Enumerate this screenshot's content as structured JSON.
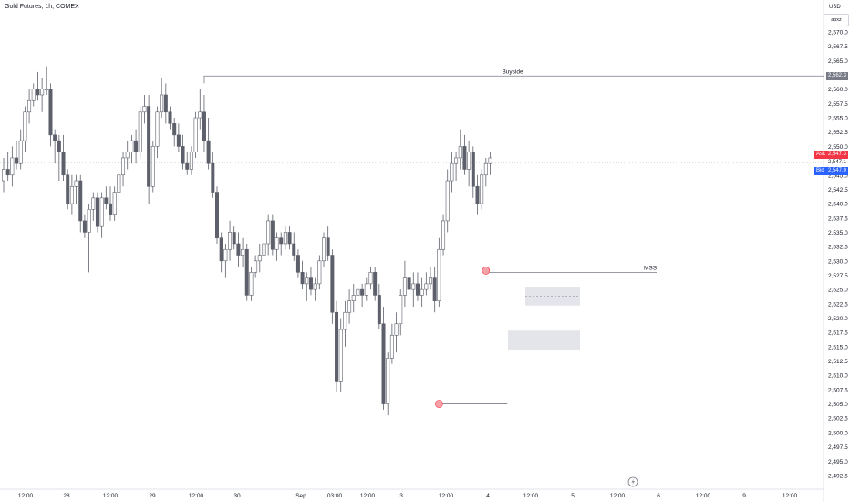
{
  "header": {
    "title": "Gold Futures, 1h, COMEX"
  },
  "price_scale": {
    "currency": "USD",
    "mode": "apxz",
    "ticks": [
      "2,570.0",
      "2,567.5",
      "2,565.0",
      "2,562.5",
      "2,560.0",
      "2,557.5",
      "2,555.0",
      "2,552.5",
      "2,550.0",
      "2,547.5",
      "2,545.0",
      "2,542.5",
      "2,540.0",
      "2,537.5",
      "2,535.0",
      "2,532.5",
      "2,530.0",
      "2,527.5",
      "2,525.0",
      "2,522.5",
      "2,520.0",
      "2,517.5",
      "2,515.0",
      "2,512.5",
      "2,510.0",
      "2,507.5",
      "2,505.0",
      "2,502.5",
      "2,500.0",
      "2,497.5",
      "2,495.0",
      "2,492.5"
    ],
    "tags": {
      "buyside": {
        "value": "2,562.3",
        "color": "#787b86"
      },
      "ask": {
        "label": "Ask",
        "value": "2,547.3",
        "color": "#f23645"
      },
      "last": {
        "value": "2,547.1"
      },
      "bid": {
        "label": "Bid",
        "value": "2,547.0",
        "color": "#2962ff"
      }
    }
  },
  "time_axis": {
    "labels": [
      "12:00",
      "28",
      "12:00",
      "29",
      "12:00",
      "30",
      "Sep",
      "03:00",
      "12:00",
      "3",
      "12:00",
      "4",
      "12:00",
      "5",
      "12:00",
      "6",
      "12:00",
      "9",
      "12:00"
    ]
  },
  "annotations": {
    "buyside": "Buyside",
    "mss": "MSS"
  },
  "chart_data": {
    "type": "candlestick",
    "symbol": "Gold Futures",
    "interval": "1h",
    "exchange": "COMEX",
    "currency": "USD",
    "y_range": [
      2491,
      2572
    ],
    "bull_color": "#ffffff",
    "bear_color": "#5d606b",
    "candles": [
      [
        2544,
        2548,
        2542,
        2546
      ],
      [
        2546,
        2549,
        2544,
        2545
      ],
      [
        2545,
        2550,
        2543,
        2548
      ],
      [
        2548,
        2551,
        2546,
        2547
      ],
      [
        2547,
        2553,
        2546,
        2551
      ],
      [
        2551,
        2557,
        2549,
        2556
      ],
      [
        2556,
        2560,
        2554,
        2558
      ],
      [
        2558,
        2561,
        2557,
        2560
      ],
      [
        2560,
        2563,
        2558,
        2559
      ],
      [
        2559,
        2562,
        2556,
        2560
      ],
      [
        2560,
        2564,
        2559,
        2560
      ],
      [
        2560,
        2561,
        2550,
        2552
      ],
      [
        2552,
        2553,
        2547,
        2551
      ],
      [
        2551,
        2552,
        2544,
        2549
      ],
      [
        2549,
        2552,
        2544,
        2545
      ],
      [
        2545,
        2546,
        2539,
        2540
      ],
      [
        2540,
        2545,
        2538,
        2543
      ],
      [
        2543,
        2545,
        2540,
        2544
      ],
      [
        2544,
        2545,
        2535,
        2537
      ],
      [
        2537,
        2538,
        2534,
        2535
      ],
      [
        2535,
        2540,
        2528,
        2539
      ],
      [
        2539,
        2542,
        2537,
        2541
      ],
      [
        2541,
        2542,
        2535,
        2536
      ],
      [
        2536,
        2542,
        2534,
        2541
      ],
      [
        2541,
        2543,
        2539,
        2540
      ],
      [
        2540,
        2543,
        2537,
        2538
      ],
      [
        2538,
        2543,
        2537,
        2542
      ],
      [
        2542,
        2546,
        2540,
        2545
      ],
      [
        2545,
        2549,
        2543,
        2548
      ],
      [
        2548,
        2551,
        2546,
        2549
      ],
      [
        2549,
        2552,
        2547,
        2551
      ],
      [
        2551,
        2553,
        2547,
        2549
      ],
      [
        2549,
        2557,
        2548,
        2556
      ],
      [
        2556,
        2559,
        2554,
        2557
      ],
      [
        2557,
        2559,
        2540,
        2543
      ],
      [
        2543,
        2551,
        2542,
        2550
      ],
      [
        2550,
        2557,
        2548,
        2556
      ],
      [
        2556,
        2562,
        2555,
        2559
      ],
      [
        2559,
        2561,
        2554,
        2556
      ],
      [
        2556,
        2557,
        2553,
        2554
      ],
      [
        2554,
        2555,
        2550,
        2552
      ],
      [
        2552,
        2554,
        2549,
        2550
      ],
      [
        2550,
        2552,
        2546,
        2547
      ],
      [
        2547,
        2549,
        2545,
        2546
      ],
      [
        2546,
        2550,
        2545,
        2549
      ],
      [
        2549,
        2556,
        2548,
        2555
      ],
      [
        2555,
        2560,
        2553,
        2556
      ],
      [
        2556,
        2559,
        2549,
        2551
      ],
      [
        2551,
        2555,
        2546,
        2547
      ],
      [
        2547,
        2549,
        2541,
        2542
      ],
      [
        2542,
        2543,
        2533,
        2534
      ],
      [
        2534,
        2535,
        2528,
        2530
      ],
      [
        2530,
        2533,
        2527,
        2532
      ],
      [
        2532,
        2537,
        2530,
        2535
      ],
      [
        2535,
        2536,
        2532,
        2533
      ],
      [
        2533,
        2535,
        2529,
        2531
      ],
      [
        2531,
        2534,
        2529,
        2532
      ],
      [
        2532,
        2533,
        2523,
        2524
      ],
      [
        2524,
        2529,
        2523,
        2528
      ],
      [
        2528,
        2531,
        2527,
        2530
      ],
      [
        2530,
        2533,
        2528,
        2531
      ],
      [
        2531,
        2535,
        2529,
        2533
      ],
      [
        2533,
        2538,
        2531,
        2537
      ],
      [
        2537,
        2538,
        2531,
        2532
      ],
      [
        2532,
        2535,
        2530,
        2534
      ],
      [
        2534,
        2535,
        2531,
        2533
      ],
      [
        2533,
        2536,
        2532,
        2535
      ],
      [
        2535,
        2536,
        2532,
        2533
      ],
      [
        2533,
        2535,
        2530,
        2531
      ],
      [
        2531,
        2532,
        2527,
        2528
      ],
      [
        2528,
        2530,
        2525,
        2526
      ],
      [
        2526,
        2528,
        2523,
        2527
      ],
      [
        2527,
        2529,
        2524,
        2525
      ],
      [
        2525,
        2527,
        2523,
        2526
      ],
      [
        2526,
        2531,
        2525,
        2530
      ],
      [
        2530,
        2535,
        2529,
        2534
      ],
      [
        2534,
        2536,
        2530,
        2531
      ],
      [
        2531,
        2532,
        2519,
        2521
      ],
      [
        2521,
        2523,
        2507,
        2509
      ],
      [
        2509,
        2520,
        2507,
        2518
      ],
      [
        2518,
        2523,
        2515,
        2521
      ],
      [
        2521,
        2525,
        2519,
        2523
      ],
      [
        2523,
        2526,
        2521,
        2524
      ],
      [
        2524,
        2526,
        2522,
        2525
      ],
      [
        2525,
        2526,
        2522,
        2524
      ],
      [
        2524,
        2527,
        2523,
        2526
      ],
      [
        2526,
        2529,
        2525,
        2528
      ],
      [
        2528,
        2529,
        2523,
        2524
      ],
      [
        2524,
        2526,
        2518,
        2519
      ],
      [
        2519,
        2522,
        2504,
        2505
      ],
      [
        2505,
        2514,
        2503,
        2513
      ],
      [
        2513,
        2519,
        2512,
        2517
      ],
      [
        2517,
        2521,
        2514,
        2519
      ],
      [
        2519,
        2525,
        2517,
        2524
      ],
      [
        2524,
        2530,
        2522,
        2527
      ],
      [
        2527,
        2529,
        2524,
        2525
      ],
      [
        2525,
        2528,
        2522,
        2526
      ],
      [
        2526,
        2528,
        2523,
        2524
      ],
      [
        2524,
        2527,
        2522,
        2525
      ],
      [
        2525,
        2528,
        2524,
        2526
      ],
      [
        2526,
        2529,
        2525,
        2527
      ],
      [
        2527,
        2529,
        2521,
        2523
      ],
      [
        2523,
        2534,
        2522,
        2532
      ],
      [
        2532,
        2538,
        2531,
        2537
      ],
      [
        2537,
        2546,
        2535,
        2544
      ],
      [
        2544,
        2549,
        2542,
        2547
      ],
      [
        2547,
        2549,
        2544,
        2548
      ],
      [
        2548,
        2553,
        2546,
        2550
      ],
      [
        2550,
        2552,
        2545,
        2546
      ],
      [
        2546,
        2551,
        2543,
        2549
      ],
      [
        2549,
        2550,
        2541,
        2543
      ],
      [
        2543,
        2545,
        2538,
        2540
      ],
      [
        2540,
        2546,
        2539,
        2545
      ],
      [
        2545,
        2548,
        2543,
        2547
      ],
      [
        2547,
        2549,
        2545,
        2548
      ]
    ]
  }
}
